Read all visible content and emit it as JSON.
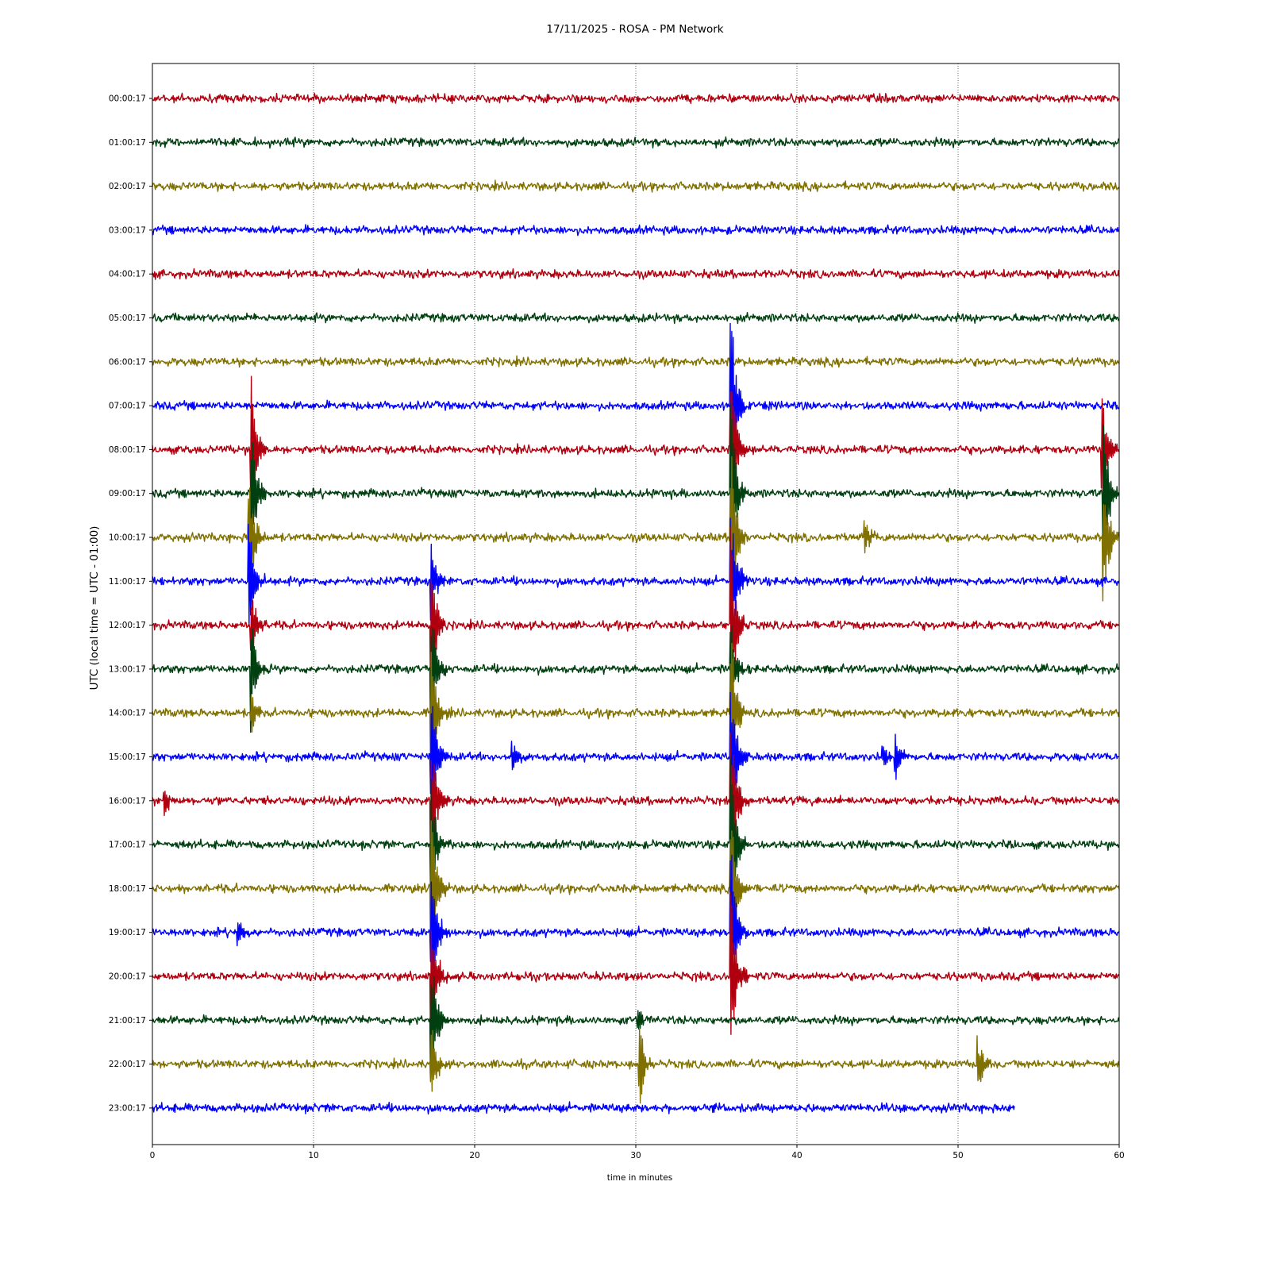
{
  "chart_data": {
    "type": "line",
    "title": "17/11/2025 - ROSA - PM Network",
    "xlabel": "time in minutes",
    "ylabel": "UTC (local time = UTC - 01:00)",
    "xlim": [
      0,
      60
    ],
    "xticks": [
      "0",
      "10",
      "20",
      "30",
      "40",
      "50",
      "60"
    ],
    "grid": "vertical dotted at x ticks",
    "trace_colors": [
      "#b0000f",
      "#004010",
      "#807000",
      "#0000ff"
    ],
    "rows": [
      {
        "label": "00:00:17",
        "end_min": 60,
        "events": []
      },
      {
        "label": "01:00:17",
        "end_min": 60,
        "events": []
      },
      {
        "label": "02:00:17",
        "end_min": 60,
        "events": []
      },
      {
        "label": "03:00:17",
        "end_min": 60,
        "events": []
      },
      {
        "label": "04:00:17",
        "end_min": 60,
        "events": []
      },
      {
        "label": "05:00:17",
        "end_min": 60,
        "events": []
      },
      {
        "label": "06:00:17",
        "end_min": 60,
        "events": []
      },
      {
        "label": "07:00:17",
        "end_min": 60,
        "events": [
          {
            "t": 35.9,
            "amp": 2.4
          }
        ]
      },
      {
        "label": "08:00:17",
        "end_min": 60,
        "events": [
          {
            "t": 6.1,
            "amp": 2.0
          },
          {
            "t": 35.9,
            "amp": 2.2
          },
          {
            "t": 58.9,
            "amp": 1.6
          }
        ]
      },
      {
        "label": "09:00:17",
        "end_min": 60,
        "events": [
          {
            "t": 6.1,
            "amp": 1.8
          },
          {
            "t": 35.9,
            "amp": 2.2
          },
          {
            "t": 59.0,
            "amp": 2.0
          }
        ]
      },
      {
        "label": "10:00:17",
        "end_min": 60,
        "events": [
          {
            "t": 6.0,
            "amp": 1.6
          },
          {
            "t": 35.9,
            "amp": 2.2
          },
          {
            "t": 44.2,
            "amp": 0.6
          },
          {
            "t": 59.0,
            "amp": 1.8
          }
        ]
      },
      {
        "label": "11:00:17",
        "end_min": 60,
        "events": [
          {
            "t": 6.0,
            "amp": 1.4
          },
          {
            "t": 17.3,
            "amp": 0.9
          },
          {
            "t": 35.9,
            "amp": 2.2
          }
        ]
      },
      {
        "label": "12:00:17",
        "end_min": 60,
        "events": [
          {
            "t": 6.1,
            "amp": 1.0
          },
          {
            "t": 17.3,
            "amp": 1.8
          },
          {
            "t": 35.9,
            "amp": 2.2
          }
        ]
      },
      {
        "label": "13:00:17",
        "end_min": 60,
        "events": [
          {
            "t": 6.1,
            "amp": 1.5
          },
          {
            "t": 17.3,
            "amp": 1.8
          },
          {
            "t": 35.9,
            "amp": 1.4
          }
        ]
      },
      {
        "label": "14:00:17",
        "end_min": 60,
        "events": [
          {
            "t": 6.1,
            "amp": 0.6
          },
          {
            "t": 17.3,
            "amp": 1.6
          },
          {
            "t": 35.9,
            "amp": 2.0
          }
        ]
      },
      {
        "label": "15:00:17",
        "end_min": 60,
        "events": [
          {
            "t": 17.3,
            "amp": 1.8
          },
          {
            "t": 22.3,
            "amp": 0.4
          },
          {
            "t": 35.9,
            "amp": 2.0
          },
          {
            "t": 45.3,
            "amp": 0.4
          },
          {
            "t": 46.1,
            "amp": 0.5
          }
        ]
      },
      {
        "label": "16:00:17",
        "end_min": 60,
        "events": [
          {
            "t": 0.7,
            "amp": 0.4
          },
          {
            "t": 17.3,
            "amp": 1.6
          },
          {
            "t": 35.9,
            "amp": 2.0
          }
        ]
      },
      {
        "label": "17:00:17",
        "end_min": 60,
        "events": [
          {
            "t": 17.3,
            "amp": 1.6
          },
          {
            "t": 35.9,
            "amp": 2.0
          }
        ]
      },
      {
        "label": "18:00:17",
        "end_min": 60,
        "events": [
          {
            "t": 17.3,
            "amp": 1.8
          },
          {
            "t": 35.9,
            "amp": 2.0
          }
        ]
      },
      {
        "label": "19:00:17",
        "end_min": 60,
        "events": [
          {
            "t": 5.3,
            "amp": 0.4
          },
          {
            "t": 17.3,
            "amp": 1.8
          },
          {
            "t": 35.9,
            "amp": 2.0
          }
        ]
      },
      {
        "label": "20:00:17",
        "end_min": 60,
        "events": [
          {
            "t": 17.3,
            "amp": 1.8
          },
          {
            "t": 35.9,
            "amp": 2.0
          }
        ]
      },
      {
        "label": "21:00:17",
        "end_min": 60,
        "events": [
          {
            "t": 17.3,
            "amp": 1.8
          },
          {
            "t": 30.1,
            "amp": 0.3
          }
        ]
      },
      {
        "label": "22:00:17",
        "end_min": 60,
        "events": [
          {
            "t": 17.3,
            "amp": 1.0
          },
          {
            "t": 30.2,
            "amp": 1.2
          },
          {
            "t": 51.2,
            "amp": 0.7
          }
        ]
      },
      {
        "label": "23:00:17",
        "end_min": 53.5,
        "events": []
      }
    ]
  }
}
